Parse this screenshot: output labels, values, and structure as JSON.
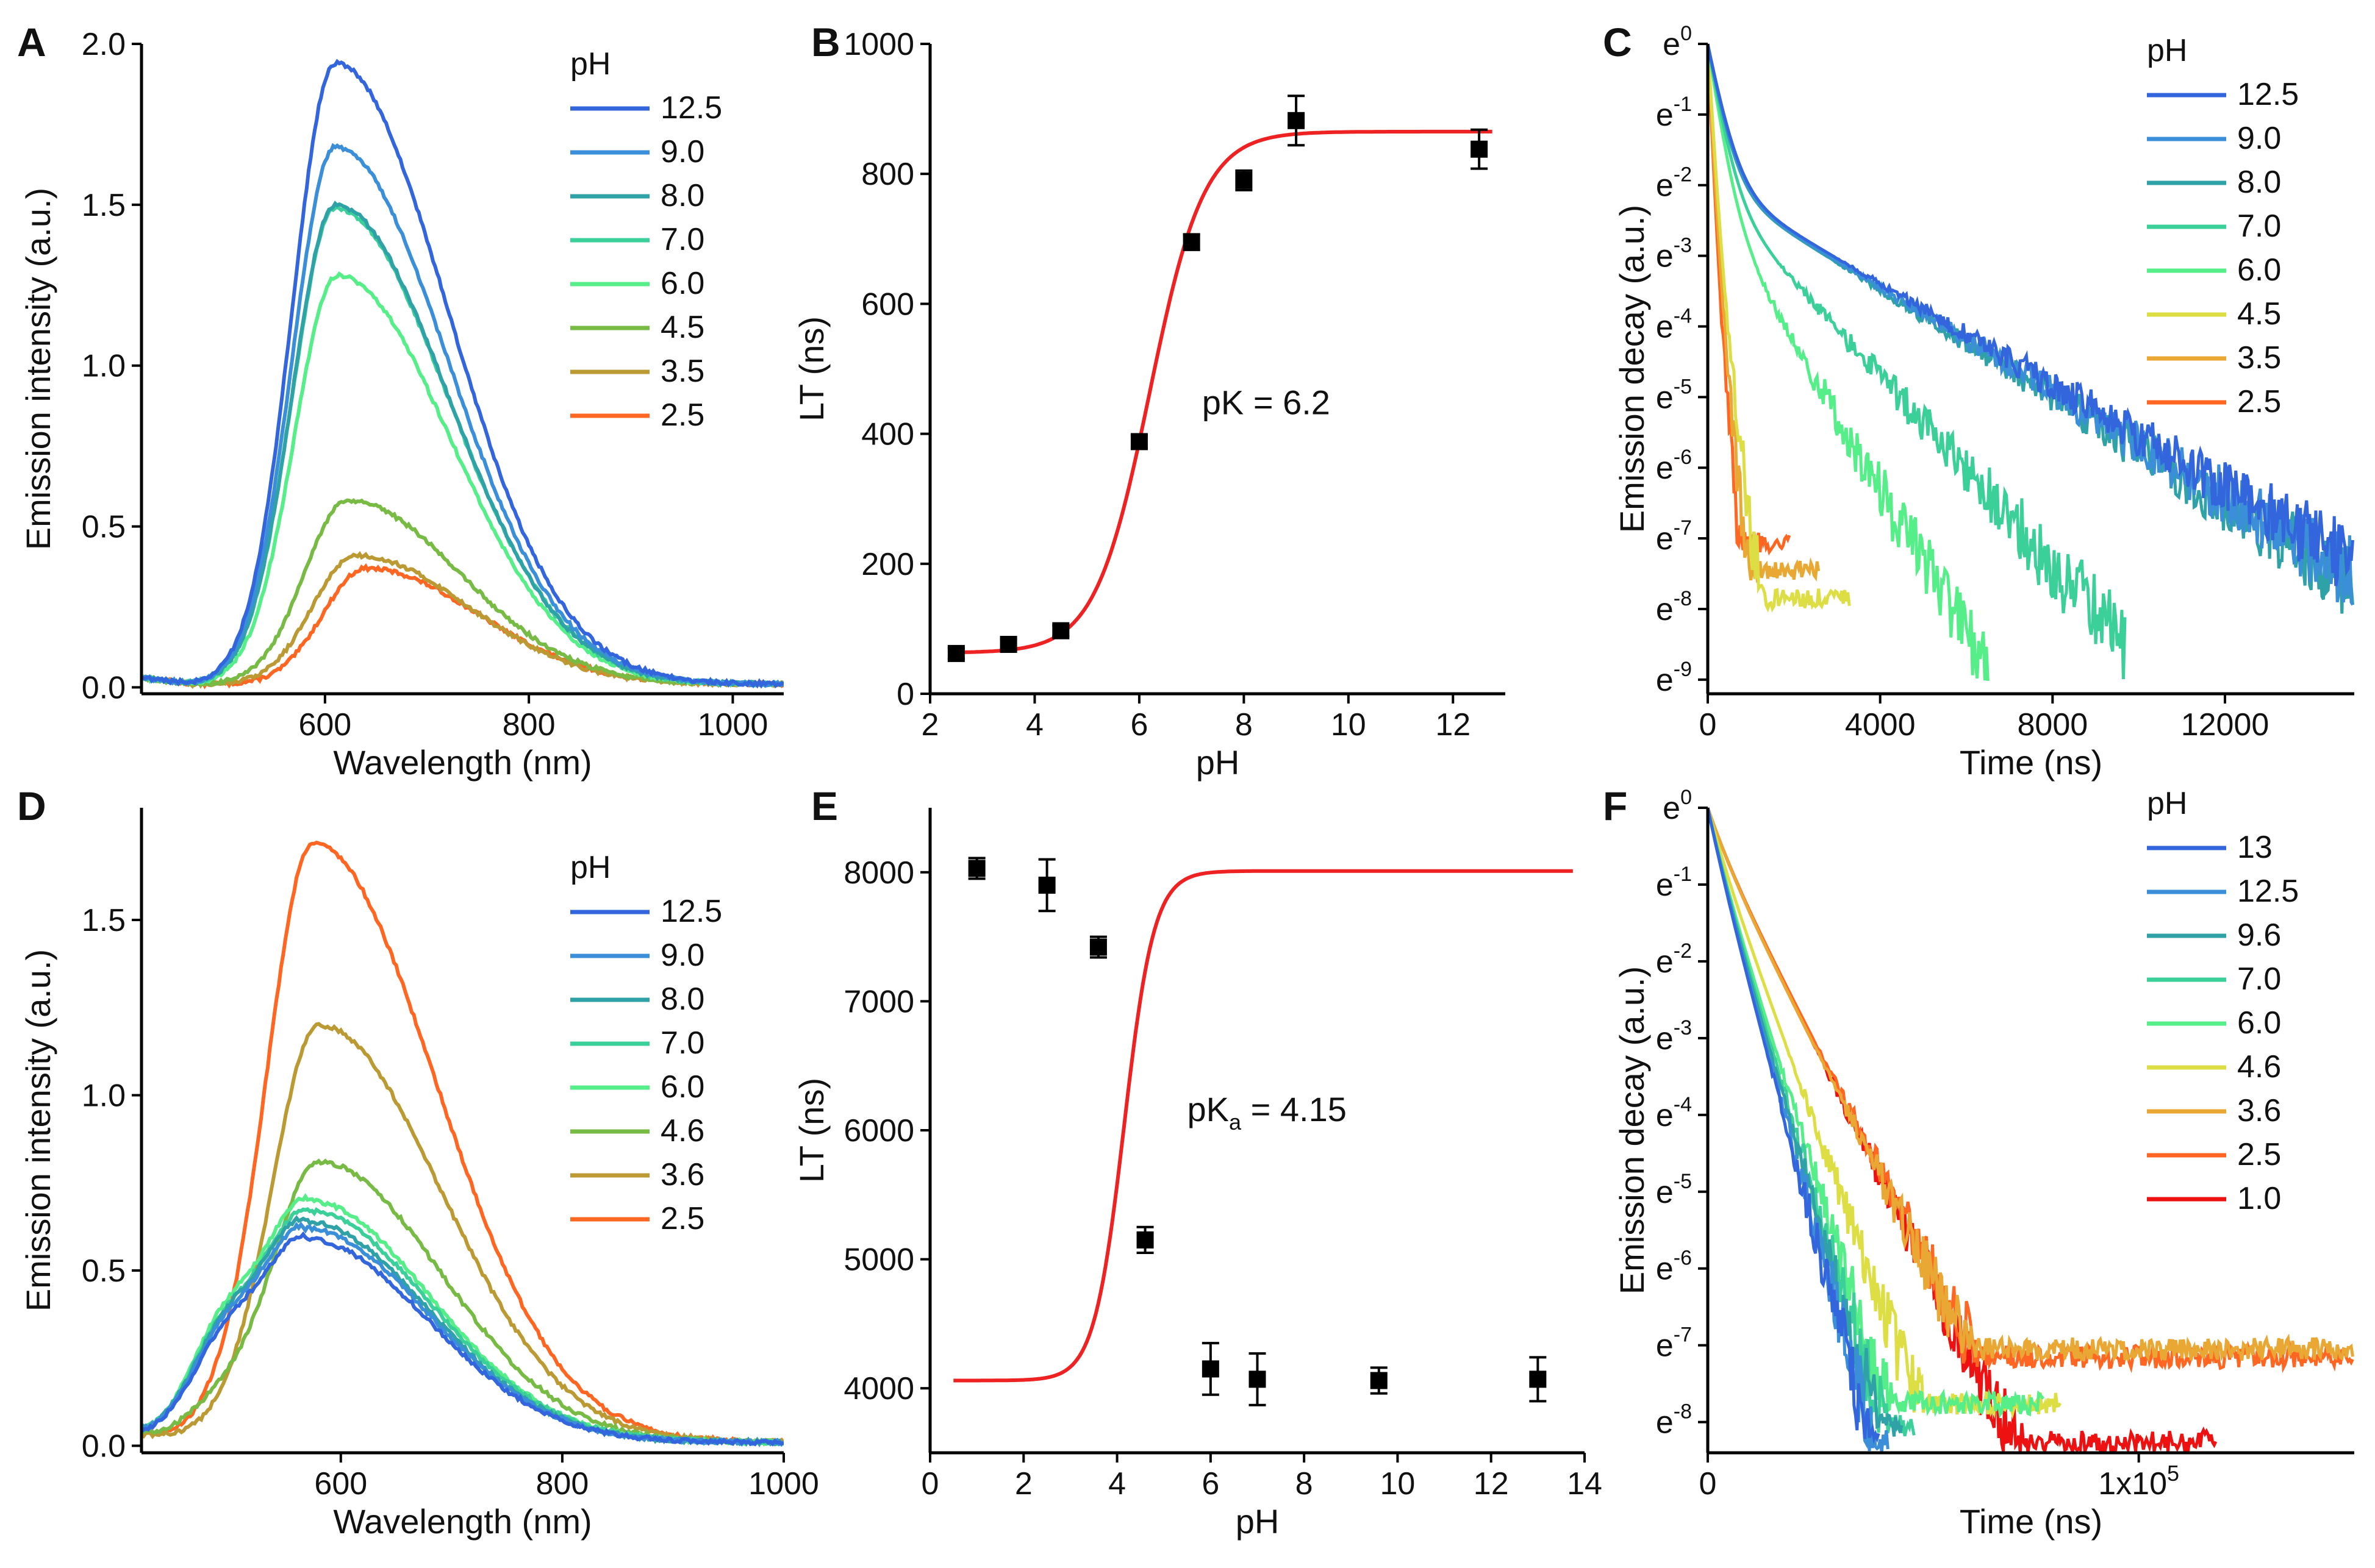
{
  "figure": {
    "panels": [
      {
        "letter": "A",
        "chart_data": {
          "type": "line",
          "title": "",
          "xlabel": "Wavelength (nm)",
          "ylabel": "Emission intensity (a.u.)",
          "xlim": [
            420,
            1050
          ],
          "ylim": [
            -0.02,
            2.0
          ],
          "xticks": [
            {
              "v": 600,
              "label": "600"
            },
            {
              "v": 800,
              "label": "800"
            },
            {
              "v": 1000,
              "label": "1000"
            }
          ],
          "yticks": [
            {
              "v": 0,
              "label": "0.0"
            },
            {
              "v": 0.5,
              "label": "0.5"
            },
            {
              "v": 1.0,
              "label": "1.0"
            },
            {
              "v": 1.5,
              "label": "1.5"
            },
            {
              "v": 2.0,
              "label": "2.0"
            }
          ],
          "legend_title": "pH",
          "legend_position": "top-right",
          "series": [
            {
              "name": "12.5",
              "color": "#3366dd",
              "peak_x": 610,
              "peak_y": 1.93
            },
            {
              "name": "9.0",
              "color": "#3a8fd8",
              "peak_x": 610,
              "peak_y": 1.67
            },
            {
              "name": "8.0",
              "color": "#2ea2a6",
              "peak_x": 610,
              "peak_y": 1.49
            },
            {
              "name": "7.0",
              "color": "#3bcf9a",
              "peak_x": 610,
              "peak_y": 1.48
            },
            {
              "name": "6.0",
              "color": "#55ee88",
              "peak_x": 612,
              "peak_y": 1.27
            },
            {
              "name": "4.5",
              "color": "#77bb44",
              "peak_x": 622,
              "peak_y": 0.57
            },
            {
              "name": "3.5",
              "color": "#bb9933",
              "peak_x": 630,
              "peak_y": 0.4
            },
            {
              "name": "2.5",
              "color": "#ff6622",
              "peak_x": 640,
              "peak_y": 0.36
            }
          ]
        }
      },
      {
        "letter": "B",
        "chart_data": {
          "type": "scatter",
          "title": "",
          "xlabel": "pH",
          "ylabel": "LT (ns)",
          "xlim": [
            2,
            13
          ],
          "ylim": [
            0,
            1000
          ],
          "xticks": [
            {
              "v": 2,
              "label": "2"
            },
            {
              "v": 4,
              "label": "4"
            },
            {
              "v": 6,
              "label": "6"
            },
            {
              "v": 8,
              "label": "8"
            },
            {
              "v": 10,
              "label": "10"
            },
            {
              "v": 12,
              "label": "12"
            }
          ],
          "yticks": [
            {
              "v": 0,
              "label": "0"
            },
            {
              "v": 200,
              "label": "200"
            },
            {
              "v": 400,
              "label": "400"
            },
            {
              "v": 600,
              "label": "600"
            },
            {
              "v": 800,
              "label": "800"
            },
            {
              "v": 1000,
              "label": "1000"
            }
          ],
          "points": [
            {
              "x": 2.5,
              "y": 62,
              "err": 8
            },
            {
              "x": 3.5,
              "y": 76,
              "err": 8
            },
            {
              "x": 4.5,
              "y": 97,
              "err": 8
            },
            {
              "x": 6.0,
              "y": 388,
              "err": 10
            },
            {
              "x": 7.0,
              "y": 695,
              "err": 12
            },
            {
              "x": 8.0,
              "y": 790,
              "err": 15
            },
            {
              "x": 9.0,
              "y": 882,
              "err": 38
            },
            {
              "x": 12.5,
              "y": 838,
              "err": 30
            }
          ],
          "fit": {
            "type": "sigmoid",
            "bottom": 63,
            "top": 865,
            "pk": 6.2,
            "slope": 0.52,
            "color": "#ee2222"
          },
          "annotation": {
            "text": "pK = 6.2",
            "x": 7.2,
            "y": 430
          }
        }
      },
      {
        "letter": "C",
        "chart_data": {
          "type": "line",
          "title": "",
          "xlabel": "Time (ns)",
          "ylabel": "Emission decay (a.u.)",
          "xlim": [
            0,
            15000
          ],
          "ylim": [
            -9.2,
            0
          ],
          "xticks": [
            {
              "v": 0,
              "label": "0"
            },
            {
              "v": 4000,
              "label": "4000"
            },
            {
              "v": 8000,
              "label": "8000"
            },
            {
              "v": 12000,
              "label": "12000"
            }
          ],
          "yticks": [
            {
              "v": 0,
              "base": "e",
              "exp": "0"
            },
            {
              "v": -1,
              "base": "e",
              "exp": "-1"
            },
            {
              "v": -2,
              "base": "e",
              "exp": "-2"
            },
            {
              "v": -3,
              "base": "e",
              "exp": "-3"
            },
            {
              "v": -4,
              "base": "e",
              "exp": "-4"
            },
            {
              "v": -5,
              "base": "e",
              "exp": "-5"
            },
            {
              "v": -6,
              "base": "e",
              "exp": "-6"
            },
            {
              "v": -7,
              "base": "e",
              "exp": "-7"
            },
            {
              "v": -8,
              "base": "e",
              "exp": "-8"
            },
            {
              "v": -9,
              "base": "e",
              "exp": "-9"
            }
          ],
          "legend_title": "pH",
          "legend_position": "top-right",
          "series": [
            {
              "name": "12.5",
              "color": "#3366dd",
              "tau_fast": 300,
              "tau_slow": 2800,
              "amp_fast": 0.86,
              "floor": -8.7,
              "end_x": 15000
            },
            {
              "name": "9.0",
              "color": "#3a8fd8",
              "tau_fast": 290,
              "tau_slow": 2700,
              "amp_fast": 0.86,
              "floor": -8.8,
              "end_x": 15000
            },
            {
              "name": "8.0",
              "color": "#2ea2a6",
              "tau_fast": 280,
              "tau_slow": 2650,
              "amp_fast": 0.86,
              "floor": -8.9,
              "end_x": 15000
            },
            {
              "name": "7.0",
              "color": "#3bcf9a",
              "tau_fast": 260,
              "tau_slow": 1500,
              "amp_fast": 0.87,
              "floor": -9.0,
              "end_x": 9700
            },
            {
              "name": "6.0",
              "color": "#55ee88",
              "tau_fast": 230,
              "tau_slow": 950,
              "amp_fast": 0.88,
              "floor": -9.1,
              "end_x": 6500
            },
            {
              "name": "4.5",
              "color": "#dddd44",
              "tau_fast": 95,
              "tau_slow": 220,
              "amp_fast": 0.9,
              "floor": -8.0,
              "end_x": 3300
            },
            {
              "name": "3.5",
              "color": "#e8a833",
              "tau_fast": 80,
              "tau_slow": 180,
              "amp_fast": 0.9,
              "floor": -7.6,
              "end_x": 2600
            },
            {
              "name": "2.5",
              "color": "#ff6622",
              "tau_fast": 70,
              "tau_slow": 150,
              "amp_fast": 0.9,
              "floor": -7.2,
              "end_x": 1900
            }
          ]
        }
      },
      {
        "letter": "D",
        "chart_data": {
          "type": "line",
          "title": "",
          "xlabel": "Wavelength (nm)",
          "ylabel": "Emission intensity (a.u.)",
          "xlim": [
            420,
            1000
          ],
          "ylim": [
            -0.02,
            1.82
          ],
          "xticks": [
            {
              "v": 600,
              "label": "600"
            },
            {
              "v": 800,
              "label": "800"
            },
            {
              "v": 1000,
              "label": "1000"
            }
          ],
          "yticks": [
            {
              "v": 0,
              "label": "0.0"
            },
            {
              "v": 0.5,
              "label": "0.5"
            },
            {
              "v": 1.0,
              "label": "1.0"
            },
            {
              "v": 1.5,
              "label": "1.5"
            }
          ],
          "legend_title": "pH",
          "legend_position": "top-right",
          "series": [
            {
              "name": "12.5",
              "color": "#3366dd",
              "peak_x": 568,
              "peak_y": 0.58
            },
            {
              "name": "9.0",
              "color": "#3a8fd8",
              "peak_x": 568,
              "peak_y": 0.61
            },
            {
              "name": "8.0",
              "color": "#2ea2a6",
              "peak_x": 568,
              "peak_y": 0.63
            },
            {
              "name": "7.0",
              "color": "#3bcf9a",
              "peak_x": 570,
              "peak_y": 0.66
            },
            {
              "name": "6.0",
              "color": "#55ee88",
              "peak_x": 570,
              "peak_y": 0.69
            },
            {
              "name": "4.6",
              "color": "#77bb44",
              "peak_x": 580,
              "peak_y": 0.8
            },
            {
              "name": "3.6",
              "color": "#bb9933",
              "peak_x": 580,
              "peak_y": 1.19
            },
            {
              "name": "2.5",
              "color": "#ff6622",
              "peak_x": 575,
              "peak_y": 1.71
            }
          ]
        }
      },
      {
        "letter": "E",
        "chart_data": {
          "type": "scatter",
          "title": "",
          "xlabel": "pH",
          "ylabel": "LT (ns)",
          "xlim": [
            0,
            14
          ],
          "ylim": [
            3500,
            8500
          ],
          "xticks": [
            {
              "v": 0,
              "label": "0"
            },
            {
              "v": 2,
              "label": "2"
            },
            {
              "v": 4,
              "label": "4"
            },
            {
              "v": 6,
              "label": "6"
            },
            {
              "v": 8,
              "label": "8"
            },
            {
              "v": 10,
              "label": "10"
            },
            {
              "v": 12,
              "label": "12"
            },
            {
              "v": 14,
              "label": "14"
            }
          ],
          "yticks": [
            {
              "v": 4000,
              "label": "4000"
            },
            {
              "v": 5000,
              "label": "5000"
            },
            {
              "v": 6000,
              "label": "6000"
            },
            {
              "v": 7000,
              "label": "7000"
            },
            {
              "v": 8000,
              "label": "8000"
            }
          ],
          "points": [
            {
              "x": 1.0,
              "y": 8030,
              "err": 80
            },
            {
              "x": 2.5,
              "y": 7900,
              "err": 200
            },
            {
              "x": 3.6,
              "y": 7420,
              "err": 80
            },
            {
              "x": 4.6,
              "y": 5150,
              "err": 100
            },
            {
              "x": 6.0,
              "y": 4150,
              "err": 200
            },
            {
              "x": 7.0,
              "y": 4070,
              "err": 200
            },
            {
              "x": 9.6,
              "y": 4060,
              "err": 100
            },
            {
              "x": 13.0,
              "y": 4070,
              "err": 170
            }
          ],
          "fit": {
            "type": "sigmoid",
            "bottom": 4060,
            "top": 8010,
            "pk": 4.15,
            "slope": 0.32,
            "color": "#ee2222"
          },
          "annotation": {
            "text": "pK",
            "sub": "a",
            "rest": " = 4.15",
            "x": 5.5,
            "y": 6070
          }
        }
      },
      {
        "letter": "F",
        "chart_data": {
          "type": "line",
          "title": "",
          "xlabel": "Time (ns)",
          "ylabel": "Emission decay (a.u.)",
          "xlim": [
            0,
            150000
          ],
          "ylim": [
            -8.4,
            0
          ],
          "xticks": [
            {
              "v": 0,
              "label": "0"
            },
            {
              "v": 100000,
              "label": "1x10",
              "exp": "5"
            }
          ],
          "yticks": [
            {
              "v": 0,
              "base": "e",
              "exp": "0"
            },
            {
              "v": -1,
              "base": "e",
              "exp": "-1"
            },
            {
              "v": -2,
              "base": "e",
              "exp": "-2"
            },
            {
              "v": -3,
              "base": "e",
              "exp": "-3"
            },
            {
              "v": -4,
              "base": "e",
              "exp": "-4"
            },
            {
              "v": -5,
              "base": "e",
              "exp": "-5"
            },
            {
              "v": -6,
              "base": "e",
              "exp": "-6"
            },
            {
              "v": -7,
              "base": "e",
              "exp": "-7"
            },
            {
              "v": -8,
              "base": "e",
              "exp": "-8"
            }
          ],
          "legend_title": "pH",
          "legend_position": "top-right",
          "series": [
            {
              "name": "13",
              "color": "#3366dd",
              "tau_fast": 2500,
              "tau_slow": 4800,
              "amp_fast": 0.3,
              "floor": -8.4,
              "end_x": 40000
            },
            {
              "name": "12.5",
              "color": "#3a8fd8",
              "tau_fast": 2500,
              "tau_slow": 4900,
              "amp_fast": 0.3,
              "floor": -8.4,
              "end_x": 42000
            },
            {
              "name": "9.6",
              "color": "#2ea2a6",
              "tau_fast": 2500,
              "tau_slow": 5100,
              "amp_fast": 0.3,
              "floor": -8.2,
              "end_x": 45000
            },
            {
              "name": "7.0",
              "color": "#3bcf9a",
              "tau_fast": 2500,
              "tau_slow": 5300,
              "amp_fast": 0.3,
              "floor": -8.2,
              "end_x": 48000
            },
            {
              "name": "6.0",
              "color": "#55ee88",
              "tau_fast": 2500,
              "tau_slow": 5600,
              "amp_fast": 0.3,
              "floor": -7.9,
              "end_x": 78000
            },
            {
              "name": "4.6",
              "color": "#dddd44",
              "tau_fast": 3000,
              "tau_slow": 6600,
              "amp_fast": 0.3,
              "floor": -7.9,
              "end_x": 82000
            },
            {
              "name": "3.6",
              "color": "#e8a833",
              "tau_fast": 3500,
              "tau_slow": 9000,
              "amp_fast": 0.3,
              "floor": -7.2,
              "end_x": 150000
            },
            {
              "name": "2.5",
              "color": "#ff6622",
              "tau_fast": 3500,
              "tau_slow": 9200,
              "amp_fast": 0.3,
              "floor": -7.3,
              "end_x": 150000
            },
            {
              "name": "1.0",
              "color": "#ee1111",
              "tau_fast": 3500,
              "tau_slow": 9000,
              "amp_fast": 0.3,
              "floor": -8.4,
              "end_x": 118000
            }
          ]
        }
      }
    ]
  }
}
